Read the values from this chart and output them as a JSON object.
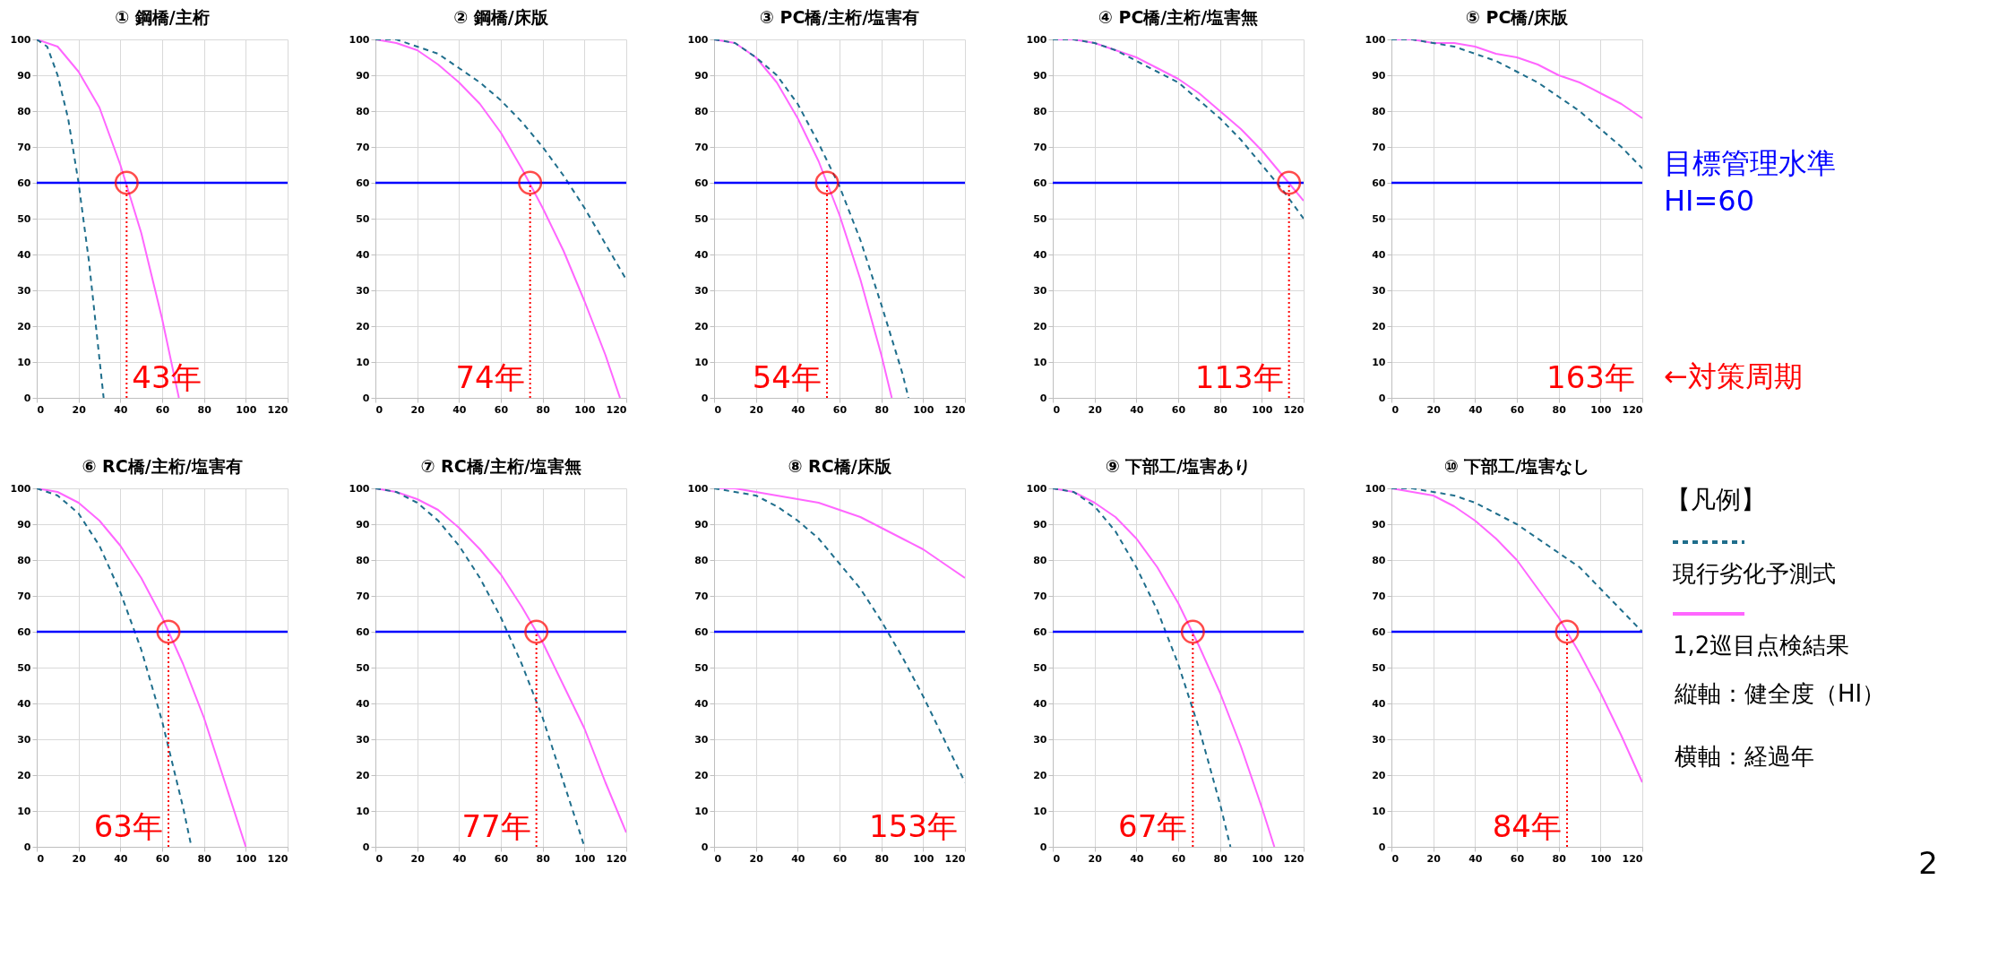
{
  "chart_data": [
    {
      "type": "line",
      "title": "① 鋼橋/主桁",
      "xlim": [
        0,
        120
      ],
      "xticks": [
        0,
        20,
        40,
        60,
        80,
        100,
        120
      ],
      "ylim": [
        0,
        100
      ],
      "yticks": [
        0,
        10,
        20,
        30,
        40,
        50,
        60,
        70,
        80,
        90,
        100
      ],
      "grid": true,
      "series": [
        {
          "color": "#1f6e8c",
          "line_style": "dashed",
          "x": [
            0,
            5,
            10,
            15,
            20,
            25,
            32
          ],
          "values": [
            100,
            98,
            90,
            78,
            60,
            38,
            0
          ]
        },
        {
          "color": "#ff66ff",
          "line_style": "solid",
          "x": [
            0,
            10,
            20,
            30,
            40,
            50,
            60,
            68
          ],
          "values": [
            100,
            98,
            91,
            81,
            65,
            46,
            22,
            0
          ]
        }
      ],
      "ref_lines": [
        {
          "axis": "y",
          "value": 60,
          "color": "#0000ff"
        }
      ],
      "annotations": [
        {
          "text": "43年",
          "x": 43,
          "y": 60
        }
      ]
    },
    {
      "type": "line",
      "title": "② 鋼橋/床版",
      "xlim": [
        0,
        120
      ],
      "xticks": [
        0,
        20,
        40,
        60,
        80,
        100,
        120
      ],
      "ylim": [
        0,
        100
      ],
      "yticks": [
        0,
        10,
        20,
        30,
        40,
        50,
        60,
        70,
        80,
        90,
        100
      ],
      "grid": true,
      "series": [
        {
          "color": "#1f6e8c",
          "line_style": "dashed",
          "x": [
            0,
            10,
            20,
            30,
            40,
            50,
            60,
            70,
            80,
            90,
            100,
            110,
            120
          ],
          "values": [
            100,
            100,
            98,
            96,
            92,
            88,
            83,
            77,
            70,
            62,
            53,
            43,
            33
          ]
        },
        {
          "color": "#ff66ff",
          "line_style": "solid",
          "x": [
            0,
            10,
            20,
            30,
            40,
            50,
            60,
            70,
            80,
            90,
            100,
            110,
            117
          ],
          "values": [
            100,
            99,
            97,
            93,
            88,
            82,
            74,
            64,
            53,
            41,
            27,
            12,
            0
          ]
        }
      ],
      "ref_lines": [
        {
          "axis": "y",
          "value": 60,
          "color": "#0000ff"
        }
      ],
      "annotations": [
        {
          "text": "74年",
          "x": 74,
          "y": 60
        }
      ]
    },
    {
      "type": "line",
      "title": "③ PC橋/主桁/塩害有",
      "xlim": [
        0,
        120
      ],
      "xticks": [
        0,
        20,
        40,
        60,
        80,
        100,
        120
      ],
      "ylim": [
        0,
        100
      ],
      "yticks": [
        0,
        10,
        20,
        30,
        40,
        50,
        60,
        70,
        80,
        90,
        100
      ],
      "grid": true,
      "series": [
        {
          "color": "#1f6e8c",
          "line_style": "dashed",
          "x": [
            0,
            10,
            20,
            30,
            40,
            50,
            60,
            70,
            80,
            90,
            93
          ],
          "values": [
            100,
            99,
            95,
            90,
            82,
            71,
            59,
            44,
            26,
            7,
            0
          ]
        },
        {
          "color": "#ff66ff",
          "line_style": "solid",
          "x": [
            0,
            10,
            20,
            30,
            40,
            50,
            60,
            70,
            80,
            85
          ],
          "values": [
            100,
            99,
            95,
            88,
            78,
            66,
            51,
            33,
            12,
            0
          ]
        }
      ],
      "ref_lines": [
        {
          "axis": "y",
          "value": 60,
          "color": "#0000ff"
        }
      ],
      "annotations": [
        {
          "text": "54年",
          "x": 54,
          "y": 60
        }
      ]
    },
    {
      "type": "line",
      "title": "④ PC橋/主桁/塩害無",
      "xlim": [
        0,
        120
      ],
      "xticks": [
        0,
        20,
        40,
        60,
        80,
        100,
        120
      ],
      "ylim": [
        0,
        100
      ],
      "yticks": [
        0,
        10,
        20,
        30,
        40,
        50,
        60,
        70,
        80,
        90,
        100
      ],
      "grid": true,
      "series": [
        {
          "color": "#1f6e8c",
          "line_style": "dashed",
          "x": [
            0,
            10,
            20,
            30,
            40,
            50,
            60,
            70,
            80,
            90,
            100,
            110,
            120
          ],
          "values": [
            100,
            100,
            99,
            97,
            94,
            91,
            88,
            83,
            78,
            72,
            65,
            58,
            50
          ]
        },
        {
          "color": "#ff66ff",
          "line_style": "solid",
          "x": [
            0,
            10,
            20,
            30,
            40,
            50,
            60,
            70,
            80,
            90,
            100,
            110,
            120
          ],
          "values": [
            100,
            100,
            99,
            97,
            95,
            92,
            89,
            85,
            80,
            75,
            69,
            62,
            55
          ]
        }
      ],
      "ref_lines": [
        {
          "axis": "y",
          "value": 60,
          "color": "#0000ff"
        }
      ],
      "annotations": [
        {
          "text": "113年",
          "x": 113,
          "y": 60
        }
      ]
    },
    {
      "type": "line",
      "title": "⑤ PC橋/床版",
      "xlim": [
        0,
        120
      ],
      "xticks": [
        0,
        20,
        40,
        60,
        80,
        100,
        120
      ],
      "ylim": [
        0,
        100
      ],
      "yticks": [
        0,
        10,
        20,
        30,
        40,
        50,
        60,
        70,
        80,
        90,
        100
      ],
      "grid": true,
      "series": [
        {
          "color": "#1f6e8c",
          "line_style": "dashed",
          "x": [
            0,
            10,
            20,
            30,
            40,
            50,
            60,
            70,
            80,
            90,
            100,
            110,
            120
          ],
          "values": [
            100,
            100,
            99,
            98,
            96,
            94,
            91,
            88,
            84,
            80,
            75,
            70,
            64
          ]
        },
        {
          "color": "#ff66ff",
          "line_style": "solid",
          "x": [
            0,
            10,
            20,
            30,
            40,
            50,
            60,
            70,
            80,
            90,
            100,
            110,
            120
          ],
          "values": [
            100,
            100,
            99,
            99,
            98,
            96,
            95,
            93,
            90,
            88,
            85,
            82,
            78
          ]
        }
      ],
      "ref_lines": [
        {
          "axis": "y",
          "value": 60,
          "color": "#0000ff",
          "label": "目標管理水準 HI=60"
        }
      ],
      "annotations": [
        "163年",
        "←対策周期"
      ]
    },
    {
      "type": "line",
      "title": "⑥ RC橋/主桁/塩害有",
      "xlim": [
        0,
        120
      ],
      "xticks": [
        0,
        20,
        40,
        60,
        80,
        100,
        120
      ],
      "ylim": [
        0,
        100
      ],
      "yticks": [
        0,
        10,
        20,
        30,
        40,
        50,
        60,
        70,
        80,
        90,
        100
      ],
      "grid": true,
      "series": [
        {
          "color": "#1f6e8c",
          "line_style": "dashed",
          "x": [
            0,
            10,
            20,
            30,
            40,
            50,
            60,
            70,
            74
          ],
          "values": [
            100,
            98,
            93,
            84,
            71,
            55,
            35,
            11,
            0
          ]
        },
        {
          "color": "#ff66ff",
          "line_style": "solid",
          "x": [
            0,
            10,
            20,
            30,
            40,
            50,
            60,
            70,
            80,
            90,
            100
          ],
          "values": [
            100,
            99,
            96,
            91,
            84,
            75,
            64,
            51,
            36,
            18,
            0
          ]
        }
      ],
      "ref_lines": [
        {
          "axis": "y",
          "value": 60,
          "color": "#0000ff"
        }
      ],
      "annotations": [
        {
          "text": "63年",
          "x": 63,
          "y": 60
        }
      ]
    },
    {
      "type": "line",
      "title": "⑦ RC橋/主桁/塩害無",
      "xlim": [
        0,
        120
      ],
      "xticks": [
        0,
        20,
        40,
        60,
        80,
        100,
        120
      ],
      "ylim": [
        0,
        100
      ],
      "yticks": [
        0,
        10,
        20,
        30,
        40,
        50,
        60,
        70,
        80,
        90,
        100
      ],
      "grid": true,
      "series": [
        {
          "color": "#1f6e8c",
          "line_style": "dashed",
          "x": [
            0,
            10,
            20,
            30,
            40,
            50,
            60,
            70,
            80,
            90,
            100
          ],
          "values": [
            100,
            99,
            96,
            91,
            84,
            75,
            64,
            51,
            36,
            18,
            0
          ]
        },
        {
          "color": "#ff66ff",
          "line_style": "solid",
          "x": [
            0,
            10,
            20,
            30,
            40,
            50,
            60,
            70,
            80,
            90,
            100,
            110,
            120
          ],
          "values": [
            100,
            99,
            97,
            94,
            89,
            83,
            76,
            67,
            57,
            45,
            33,
            18,
            4
          ]
        }
      ],
      "ref_lines": [
        {
          "axis": "y",
          "value": 60,
          "color": "#0000ff"
        }
      ],
      "annotations": [
        {
          "text": "77年",
          "x": 77,
          "y": 60
        }
      ]
    },
    {
      "type": "line",
      "title": "⑧ RC橋/床版",
      "xlim": [
        0,
        120
      ],
      "xticks": [
        0,
        20,
        40,
        60,
        80,
        100,
        120
      ],
      "ylim": [
        0,
        100
      ],
      "yticks": [
        0,
        10,
        20,
        30,
        40,
        50,
        60,
        70,
        80,
        90,
        100
      ],
      "grid": true,
      "series": [
        {
          "color": "#1f6e8c",
          "line_style": "dashed",
          "x": [
            0,
            10,
            20,
            30,
            40,
            50,
            60,
            70,
            80,
            90,
            100,
            110,
            120
          ],
          "values": [
            100,
            99,
            98,
            95,
            91,
            86,
            79,
            72,
            63,
            53,
            42,
            30,
            18
          ]
        },
        {
          "color": "#ff66ff",
          "line_style": "solid",
          "x": [
            0,
            10,
            20,
            30,
            40,
            50,
            60,
            70,
            80,
            90,
            100,
            110,
            120
          ],
          "values": [
            100,
            100,
            99,
            98,
            97,
            96,
            94,
            92,
            89,
            86,
            83,
            79,
            75
          ]
        }
      ],
      "ref_lines": [
        {
          "axis": "y",
          "value": 60,
          "color": "#0000ff"
        }
      ],
      "annotations": [
        "153年"
      ]
    },
    {
      "type": "line",
      "title": "⑨ 下部工/塩害あり",
      "xlim": [
        0,
        120
      ],
      "xticks": [
        0,
        20,
        40,
        60,
        80,
        100,
        120
      ],
      "ylim": [
        0,
        100
      ],
      "yticks": [
        0,
        10,
        20,
        30,
        40,
        50,
        60,
        70,
        80,
        90,
        100
      ],
      "grid": true,
      "series": [
        {
          "color": "#1f6e8c",
          "line_style": "dashed",
          "x": [
            0,
            10,
            20,
            30,
            40,
            50,
            60,
            70,
            80,
            85
          ],
          "values": [
            100,
            99,
            95,
            88,
            78,
            66,
            51,
            33,
            12,
            0
          ]
        },
        {
          "color": "#ff66ff",
          "line_style": "solid",
          "x": [
            0,
            10,
            20,
            30,
            40,
            50,
            60,
            70,
            80,
            90,
            100,
            106
          ],
          "values": [
            100,
            99,
            96,
            92,
            86,
            78,
            68,
            56,
            43,
            28,
            11,
            0
          ]
        }
      ],
      "ref_lines": [
        {
          "axis": "y",
          "value": 60,
          "color": "#0000ff"
        }
      ],
      "annotations": [
        {
          "text": "67年",
          "x": 67,
          "y": 60
        }
      ]
    },
    {
      "type": "line",
      "title": "⑩ 下部工/塩害なし",
      "xlim": [
        0,
        120
      ],
      "xticks": [
        0,
        20,
        40,
        60,
        80,
        100,
        120
      ],
      "ylim": [
        0,
        100
      ],
      "yticks": [
        0,
        10,
        20,
        30,
        40,
        50,
        60,
        70,
        80,
        90,
        100
      ],
      "grid": true,
      "legend": "right",
      "legend_title": "【凡例】",
      "series": [
        {
          "name": "現行劣化予測式",
          "color": "#1f6e8c",
          "line_style": "dashed",
          "x": [
            0,
            10,
            20,
            30,
            40,
            50,
            60,
            70,
            80,
            90,
            100,
            110,
            120
          ],
          "values": [
            100,
            100,
            99,
            98,
            96,
            93,
            90,
            86,
            82,
            78,
            72,
            66,
            60
          ]
        },
        {
          "name": "1,2巡目点検結果",
          "color": "#ff66ff",
          "line_style": "solid",
          "x": [
            0,
            10,
            20,
            30,
            40,
            50,
            60,
            70,
            80,
            90,
            100,
            110,
            120
          ],
          "values": [
            100,
            99,
            98,
            95,
            91,
            86,
            80,
            72,
            64,
            54,
            43,
            31,
            18
          ]
        }
      ],
      "ref_lines": [
        {
          "axis": "y",
          "value": 60,
          "color": "#0000ff"
        }
      ],
      "annotations": [
        {
          "text": "84年",
          "x": 84,
          "y": 60
        },
        "縦軸：健全度（HI）",
        "横軸：経過年",
        "2"
      ]
    }
  ]
}
